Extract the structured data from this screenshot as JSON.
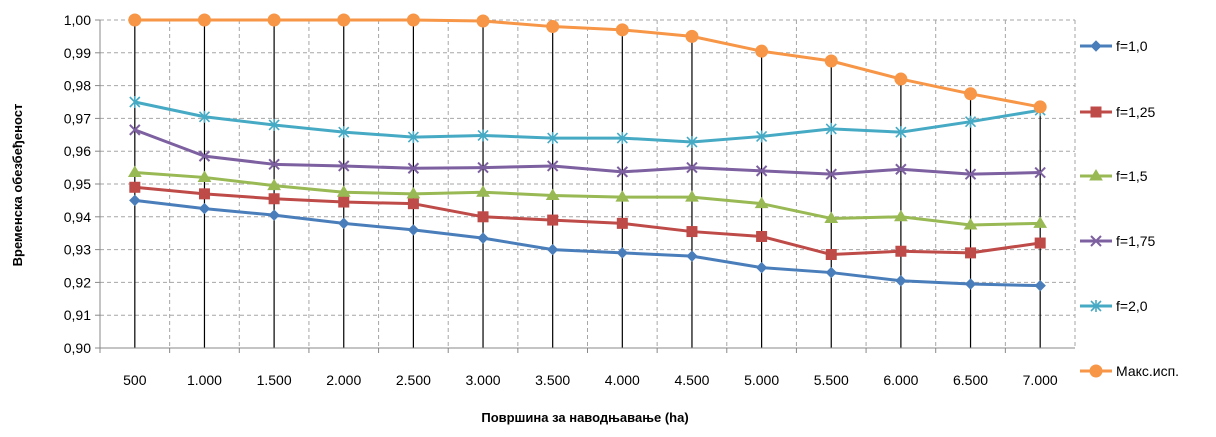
{
  "chart_data": {
    "type": "line",
    "title": "",
    "xlabel": "Површина за наводњавање  (ha)",
    "ylabel": "Временска обезбеђеност",
    "categories": [
      "500",
      "1.000",
      "1.500",
      "2.000",
      "2.500",
      "3.000",
      "3.500",
      "4.000",
      "4.500",
      "5.000",
      "5.500",
      "6.000",
      "6.500",
      "7.000"
    ],
    "ylim": [
      0.9,
      1.0
    ],
    "yticks": [
      "0,90",
      "0,91",
      "0,92",
      "0,93",
      "0,94",
      "0,95",
      "0,96",
      "0,97",
      "0,98",
      "0,99",
      "1,00"
    ],
    "grid": true,
    "drop_lines": true,
    "legend_position": "right",
    "series": [
      {
        "name": "f=1,0",
        "color": "#4a7ebb",
        "marker": "diamond",
        "values": [
          0.945,
          0.9425,
          0.9405,
          0.938,
          0.936,
          0.9335,
          0.93,
          0.929,
          0.928,
          0.9245,
          0.923,
          0.9205,
          0.9195,
          0.919
        ]
      },
      {
        "name": "f=1,25",
        "color": "#be4b48",
        "marker": "square",
        "values": [
          0.949,
          0.947,
          0.9455,
          0.9445,
          0.944,
          0.94,
          0.939,
          0.938,
          0.9355,
          0.934,
          0.9285,
          0.9295,
          0.929,
          0.932
        ]
      },
      {
        "name": "f=1,5",
        "color": "#98b954",
        "marker": "triangle",
        "values": [
          0.9535,
          0.952,
          0.9495,
          0.9475,
          0.947,
          0.9475,
          0.9465,
          0.946,
          0.946,
          0.944,
          0.9395,
          0.94,
          0.9375,
          0.938
        ]
      },
      {
        "name": "f=1,75",
        "color": "#7d60a0",
        "marker": "x",
        "values": [
          0.9665,
          0.9585,
          0.956,
          0.9555,
          0.9548,
          0.955,
          0.9555,
          0.9537,
          0.955,
          0.954,
          0.953,
          0.9545,
          0.953,
          0.9535
        ]
      },
      {
        "name": "f=2,0",
        "color": "#46aac5",
        "marker": "star",
        "values": [
          0.975,
          0.9705,
          0.968,
          0.9658,
          0.9643,
          0.9648,
          0.964,
          0.964,
          0.9628,
          0.9645,
          0.9668,
          0.9658,
          0.969,
          0.9725
        ]
      },
      {
        "name": "Макс.исп.",
        "color": "#f79646",
        "marker": "circle",
        "values": [
          1.0,
          1.0,
          1.0,
          1.0,
          1.0,
          0.9997,
          0.998,
          0.997,
          0.995,
          0.9905,
          0.9875,
          0.982,
          0.9775,
          0.9735
        ]
      }
    ]
  }
}
